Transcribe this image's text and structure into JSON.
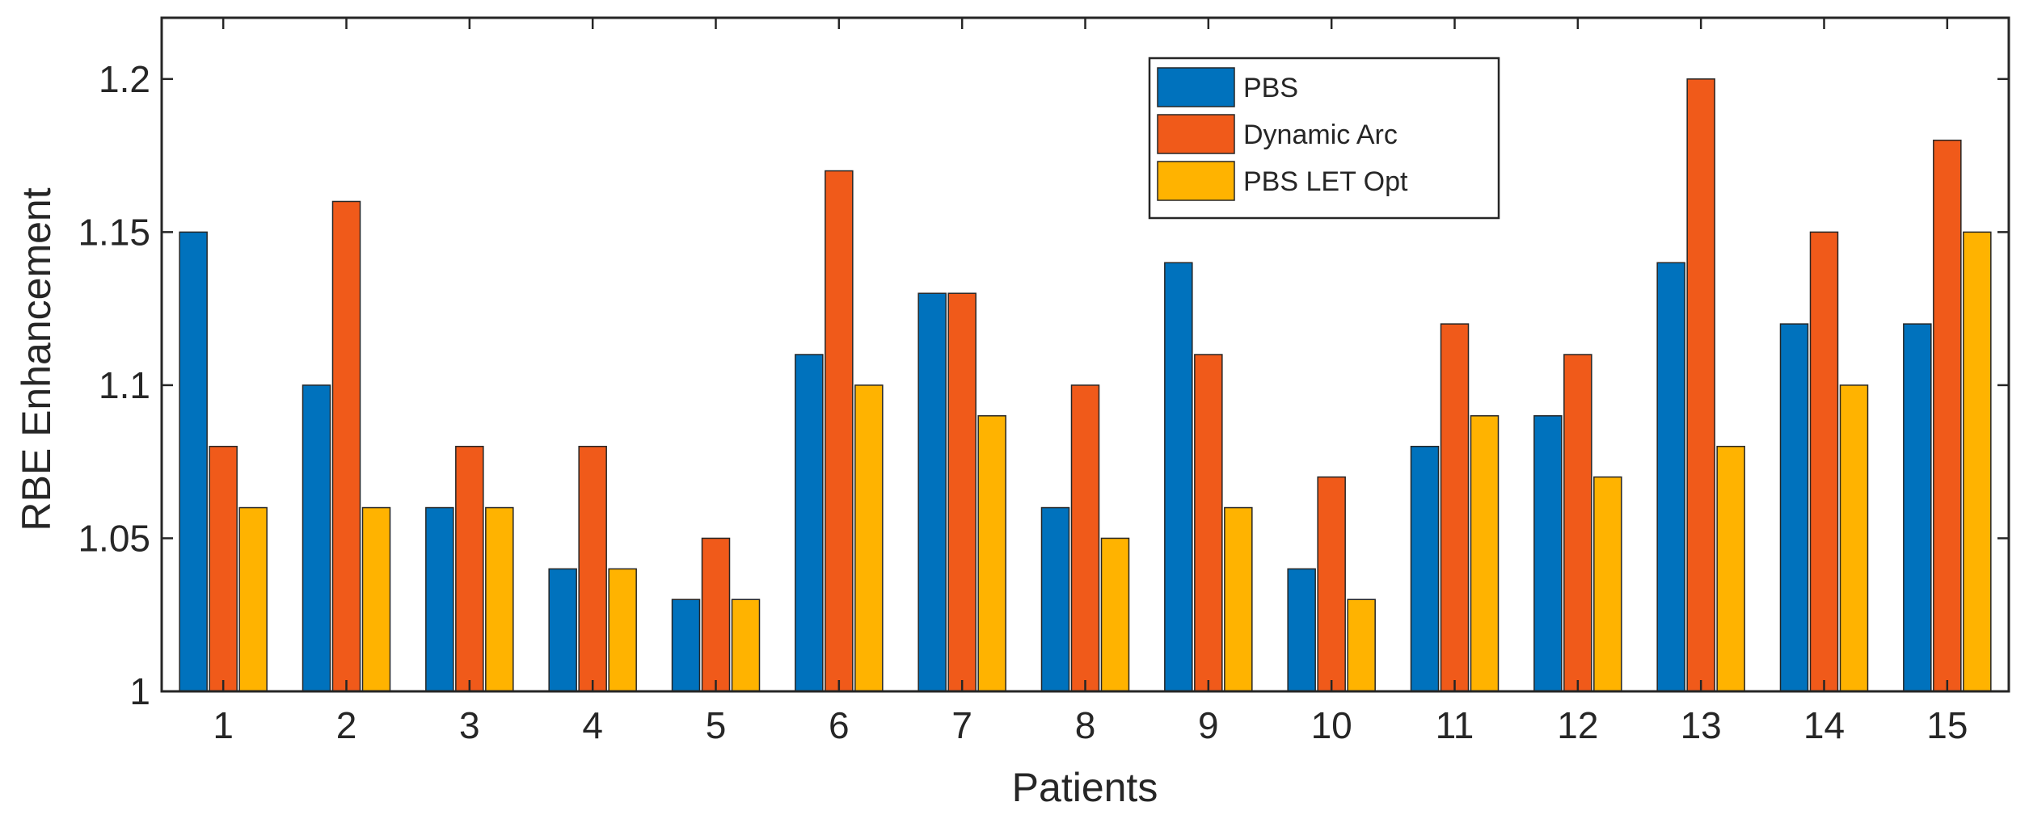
{
  "chart_data": {
    "type": "bar",
    "title": "",
    "xlabel": "Patients",
    "ylabel": "RBE Enhancement",
    "categories": [
      "1",
      "2",
      "3",
      "4",
      "5",
      "6",
      "7",
      "8",
      "9",
      "10",
      "11",
      "12",
      "13",
      "14",
      "15"
    ],
    "ylim": [
      1,
      1.22
    ],
    "yticks": [
      1,
      1.05,
      1.1,
      1.15,
      1.2
    ],
    "ytick_labels": [
      "1",
      "1.05",
      "1.1",
      "1.15",
      "1.2"
    ],
    "grid": false,
    "legend_position": "top-center",
    "series": [
      {
        "name": "PBS",
        "color": "#0072BD",
        "values": [
          1.15,
          1.1,
          1.06,
          1.04,
          1.03,
          1.11,
          1.13,
          1.06,
          1.14,
          1.04,
          1.08,
          1.09,
          1.14,
          1.12,
          1.12
        ]
      },
      {
        "name": "Dynamic Arc",
        "color": "#F05A1A",
        "values": [
          1.08,
          1.16,
          1.08,
          1.08,
          1.05,
          1.17,
          1.13,
          1.1,
          1.11,
          1.07,
          1.12,
          1.11,
          1.2,
          1.15,
          1.18
        ]
      },
      {
        "name": "PBS LET Opt",
        "color": "#FFB300",
        "values": [
          1.06,
          1.06,
          1.06,
          1.04,
          1.03,
          1.1,
          1.09,
          1.05,
          1.06,
          1.03,
          1.09,
          1.07,
          1.08,
          1.1,
          1.15
        ]
      }
    ]
  }
}
